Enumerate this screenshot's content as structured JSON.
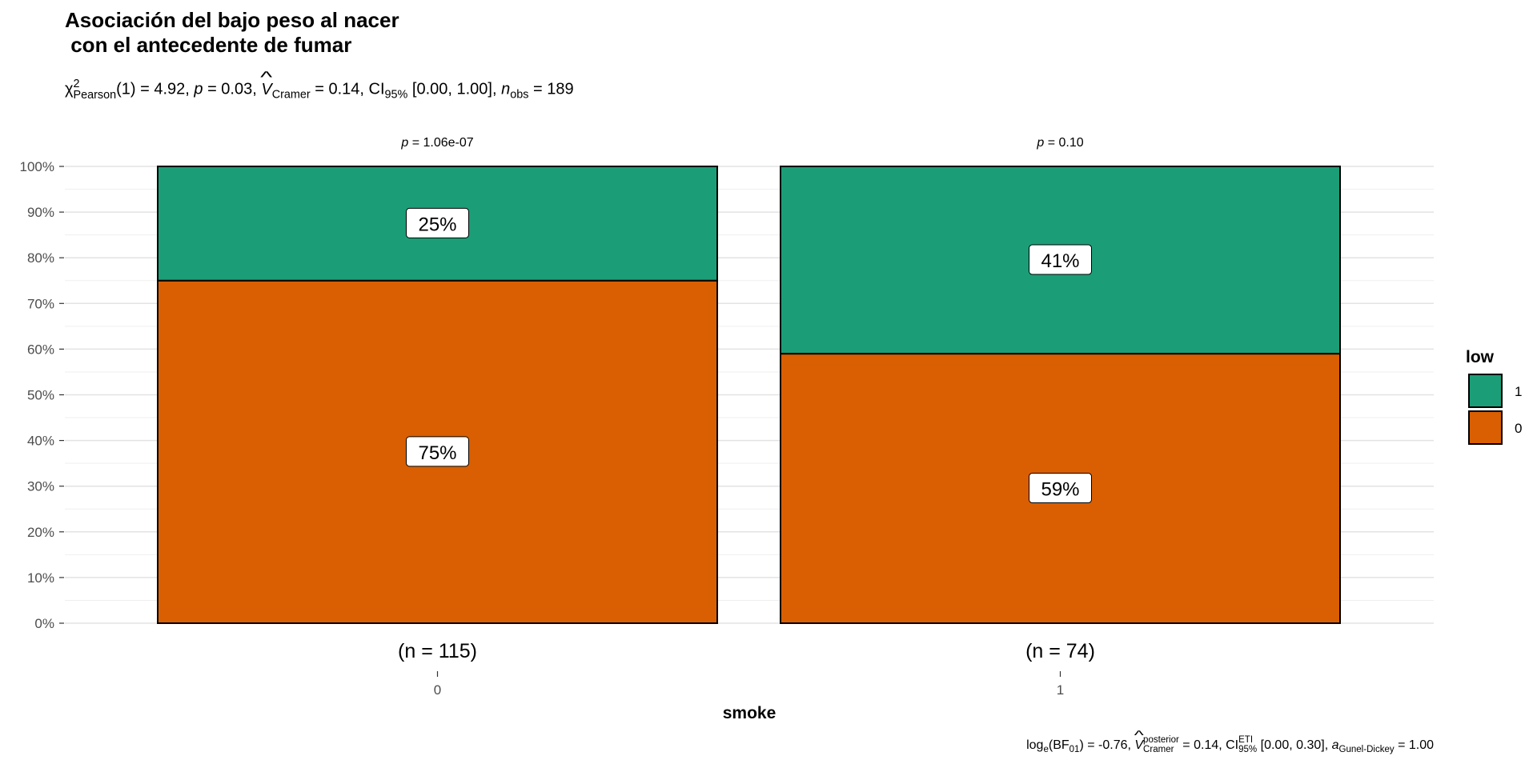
{
  "title": "Asociación del bajo peso al nacer\n con el antecedente de fumar",
  "subtitle": {
    "chi_symbol": "χ",
    "chi_sup": "2",
    "chi_sub": "Pearson",
    "chi_rest": "(1) = 4.92, ",
    "p_symbol": "p",
    "p_rest": " = 0.03, ",
    "v_symbol": "V",
    "v_sub": "Cramer",
    "v_rest": " = 0.14, CI",
    "ci_sub": "95%",
    "ci_rest": " [0.00, 1.00], ",
    "n_symbol": "n",
    "n_sub": "obs",
    "n_rest": " = 189"
  },
  "caption": {
    "log": "log",
    "log_sub": "e",
    "bf": "(BF",
    "bf_sub": "01",
    "bf_rest": ") = -0.76, ",
    "v_symbol": "V",
    "v_sup": "posterior",
    "v_sub": "Cramer",
    "v_rest": " = 0.14, CI",
    "ci_sup": "ETI",
    "ci_sub": "95%",
    "ci_rest": " [0.00, 0.30], ",
    "a_symbol": "a",
    "a_sub": "Gunel-Dickey",
    "a_rest": " = 1.00"
  },
  "chart_data": {
    "type": "bar",
    "stacked": true,
    "xlabel": "smoke",
    "ylabel": "",
    "ylim": [
      0,
      100
    ],
    "yticks": [
      "0%",
      "10%",
      "20%",
      "30%",
      "40%",
      "50%",
      "60%",
      "70%",
      "80%",
      "90%",
      "100%"
    ],
    "grid": true,
    "categories": [
      "0",
      "1"
    ],
    "counts_labels": [
      "(n = 115)",
      "(n = 74)"
    ],
    "pvalue_labels": [
      {
        "p": "p",
        "rest": " = 1.06e-07"
      },
      {
        "p": "p",
        "rest": " = 0.10"
      }
    ],
    "series": [
      {
        "name": "0",
        "color": "#D95F02",
        "values": [
          75,
          59
        ],
        "labels": [
          "75%",
          "59%"
        ]
      },
      {
        "name": "1",
        "color": "#1B9E77",
        "values": [
          25,
          41
        ],
        "labels": [
          "25%",
          "41%"
        ]
      }
    ],
    "legend": {
      "title": "low",
      "position": "right",
      "entries": [
        "1",
        "0"
      ]
    }
  }
}
